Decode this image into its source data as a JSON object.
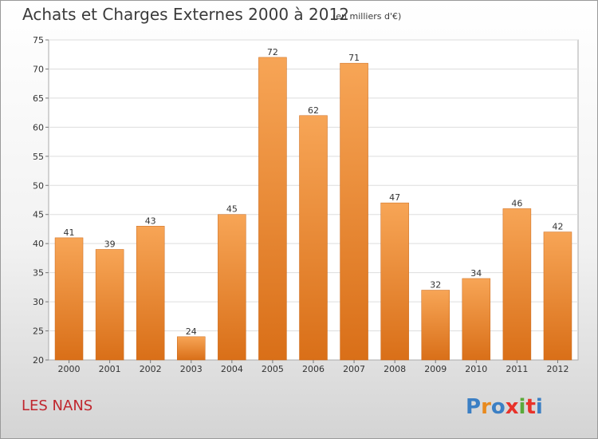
{
  "chart_data": {
    "type": "bar",
    "title": "Achats et Charges Externes 2000 à 2012",
    "subtitle": "(en milliers d'€)",
    "categories": [
      "2000",
      "2001",
      "2002",
      "2003",
      "2004",
      "2005",
      "2006",
      "2007",
      "2008",
      "2009",
      "2010",
      "2011",
      "2012"
    ],
    "values": [
      41,
      39,
      43,
      24,
      45,
      72,
      62,
      71,
      47,
      32,
      34,
      46,
      42
    ],
    "ylim": [
      20,
      75
    ],
    "yticks": [
      20,
      25,
      30,
      35,
      40,
      45,
      50,
      55,
      60,
      65,
      70,
      75
    ],
    "grid": true,
    "bar_color": "#e8822a",
    "data_labels": true
  },
  "footer": {
    "commune": "LES NANS",
    "logo_text": "Proxiti",
    "logo_colors": [
      "#3b7fc4",
      "#e88a1e",
      "#3b7fc4",
      "#e8322a",
      "#5aaa3a",
      "#e8322a",
      "#3b7fc4"
    ]
  }
}
